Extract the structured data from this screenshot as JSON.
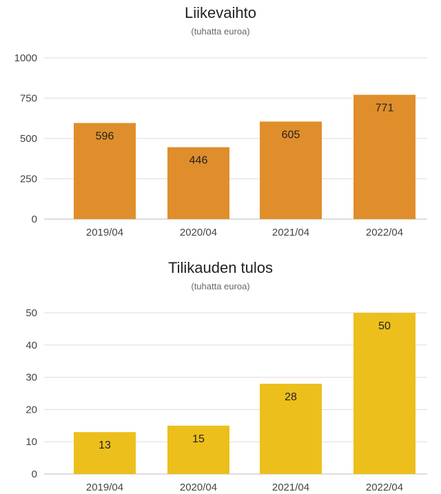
{
  "chart_data": [
    {
      "type": "bar",
      "title": "Liikevaihto",
      "subtitle": "(tuhatta euroa)",
      "categories": [
        "2019/04",
        "2020/04",
        "2021/04",
        "2022/04"
      ],
      "values": [
        596,
        446,
        605,
        771
      ],
      "ylim": [
        0,
        1000
      ],
      "yticks": [
        0,
        250,
        500,
        750,
        1000
      ],
      "grid": true,
      "bar_color": "#e08e2b",
      "data_labels": true
    },
    {
      "type": "bar",
      "title": "Tilikauden tulos",
      "subtitle": "(tuhatta euroa)",
      "categories": [
        "2019/04",
        "2020/04",
        "2021/04",
        "2022/04"
      ],
      "values": [
        13,
        15,
        28,
        50
      ],
      "ylim": [
        0,
        50
      ],
      "yticks": [
        0,
        10,
        20,
        30,
        40,
        50
      ],
      "grid": true,
      "bar_color": "#ecbf1c",
      "data_labels": true
    }
  ]
}
